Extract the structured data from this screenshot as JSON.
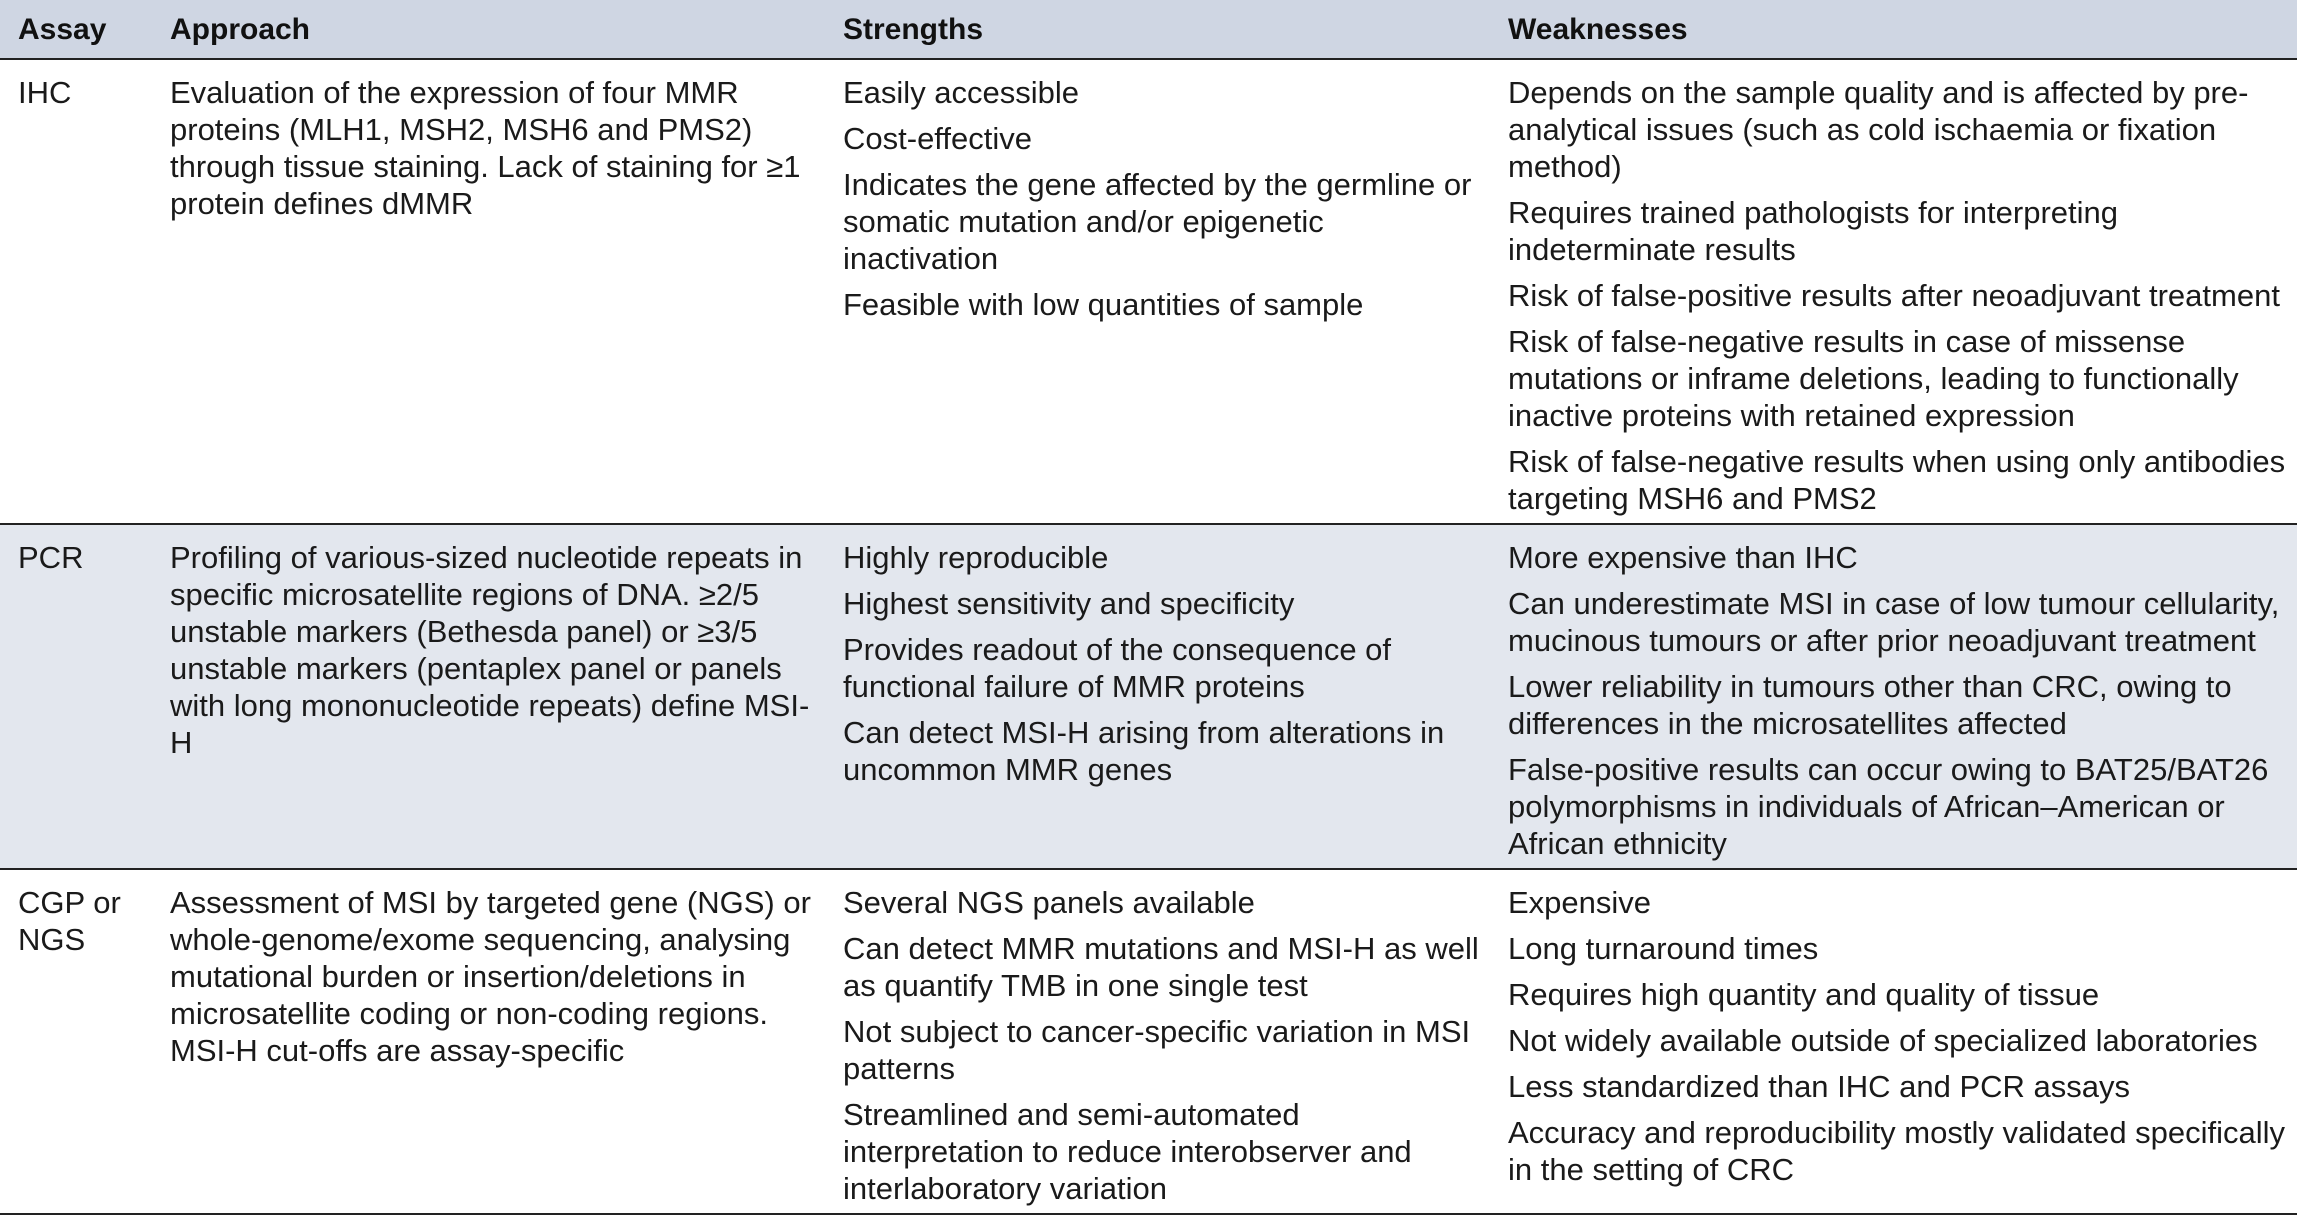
{
  "headers": [
    "Assay",
    "Approach",
    "Strengths",
    "Weaknesses"
  ],
  "rows": [
    {
      "assay": "IHC",
      "approach": "Evaluation of the expression of four MMR proteins (MLH1, MSH2, MSH6 and PMS2) through tissue staining. Lack of staining for ≥1 protein defines dMMR",
      "strengths": [
        "Easily accessible",
        "Cost-effective",
        "Indicates the gene affected by the germline or somatic mutation and/or epigenetic inactivation",
        "Feasible with low quantities of sample"
      ],
      "weaknesses": [
        "Depends on the sample quality and is affected by pre-analytical issues (such as cold ischaemia or fixation method)",
        "Requires trained pathologists for interpreting indeterminate results",
        "Risk of false-positive results after neoadjuvant treatment",
        "Risk of false-negative results in case of missense mutations or inframe deletions, leading to functionally inactive proteins with retained expression",
        "Risk of false-negative results when using only antibodies targeting MSH6 and PMS2"
      ]
    },
    {
      "assay": "PCR",
      "approach": "Profiling of various-sized nucleotide repeats in specific microsatellite regions of DNA. ≥2/5 unstable markers (Bethesda panel) or ≥3/5 unstable markers (pentaplex panel or panels with long mononucleotide repeats) define MSI-H",
      "strengths": [
        "Highly reproducible",
        "Highest sensitivity and specificity",
        "Provides readout of the consequence of functional failure of MMR proteins",
        "Can detect MSI-H arising from alterations in uncommon MMR genes"
      ],
      "weaknesses": [
        "More expensive than IHC",
        "Can underestimate MSI in case of low tumour cellularity, mucinous tumours or after prior neoadjuvant treatment",
        "Lower reliability in tumours other than CRC, owing to differences in the microsatellites affected",
        "False-positive results can occur owing to BAT25/BAT26 polymorphisms in individuals of African–American or African ethnicity"
      ]
    },
    {
      "assay": "CGP or NGS",
      "approach": "Assessment of MSI by targeted gene (NGS) or whole-genome/exome sequencing, analysing mutational burden or insertion/deletions in microsatellite coding or non-coding regions. MSI-H cut-offs are assay-specific",
      "strengths": [
        "Several NGS panels available",
        "Can detect MMR mutations and MSI-H as well as quantify TMB in one single test",
        "Not subject to cancer-specific variation in MSI patterns",
        "Streamlined and semi-automated interpretation to reduce interobserver and interlaboratory variation"
      ],
      "weaknesses": [
        "Expensive",
        "Long turnaround times",
        "Requires high quantity and quality of tissue",
        "Not widely available outside of specialized laboratories",
        "Less standardized than IHC and PCR assays",
        "Accuracy and reproducibility mostly validated specifically in the setting of CRC"
      ]
    }
  ]
}
